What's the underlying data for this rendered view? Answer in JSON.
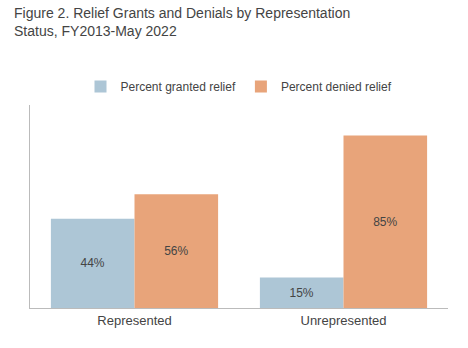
{
  "chart_data": {
    "type": "bar",
    "title": "Figure 2. Relief Grants and Denials by Representation\nStatus, FY2013-May 2022",
    "categories": [
      "Represented",
      "Unrepresented"
    ],
    "series": [
      {
        "name": "Percent granted relief",
        "color": "#adc6d6",
        "values": [
          44,
          15
        ],
        "value_labels": [
          "44%",
          "15%"
        ]
      },
      {
        "name": "Percent denied relief",
        "color": "#e8a47a",
        "values": [
          56,
          85
        ],
        "value_labels": [
          "56%",
          "85%"
        ]
      }
    ],
    "ylim": [
      0,
      100
    ],
    "grid": false,
    "legend": "top",
    "data_labels": true,
    "tick_labels": "x"
  }
}
